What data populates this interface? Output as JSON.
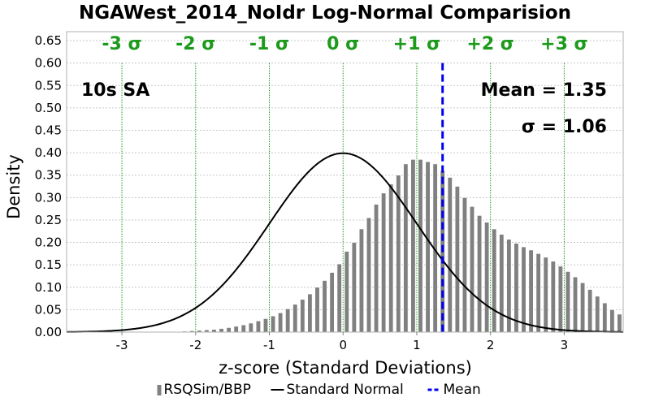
{
  "chart_data": {
    "type": "bar",
    "title": "NGAWest_2014_NoIdr Log-Normal Comparision",
    "xlabel": "z-score (Standard Deviations)",
    "ylabel": "Density",
    "xlim": [
      -3.75,
      3.8
    ],
    "ylim": [
      0,
      0.67
    ],
    "xticks": [
      -3,
      -2,
      -1,
      0,
      1,
      2,
      3
    ],
    "xtick_labels": [
      "-3",
      "-2",
      "-1",
      "0",
      "1",
      "2",
      "3"
    ],
    "yticks": [
      0,
      0.05,
      0.1,
      0.15,
      0.2,
      0.25,
      0.3,
      0.35,
      0.4,
      0.45,
      0.5,
      0.55,
      0.6,
      0.65
    ],
    "ytick_labels": [
      "0.00",
      "0.05",
      "0.10",
      "0.15",
      "0.20",
      "0.25",
      "0.30",
      "0.35",
      "0.40",
      "0.45",
      "0.50",
      "0.55",
      "0.60",
      "0.65"
    ],
    "grid": true,
    "sigma_lines": [
      {
        "x": -3,
        "label": "-3 σ"
      },
      {
        "x": -2,
        "label": "-2 σ"
      },
      {
        "x": -1,
        "label": "-1 σ"
      },
      {
        "x": 0,
        "label": "0 σ"
      },
      {
        "x": 1,
        "label": "+1 σ"
      },
      {
        "x": 2,
        "label": "+2 σ"
      },
      {
        "x": 3,
        "label": "+3 σ"
      }
    ],
    "annotations": {
      "period": "10s SA",
      "mean": "Mean = 1.35",
      "sigma": "σ = 1.06"
    },
    "mean_value": 1.35,
    "histogram": {
      "name": "RSQSim/BBP",
      "color": "#808080",
      "bin_width": 0.06,
      "points": [
        [
          -2.15,
          0.002
        ],
        [
          -2.05,
          0.003
        ],
        [
          -1.95,
          0.004
        ],
        [
          -1.85,
          0.005
        ],
        [
          -1.75,
          0.006
        ],
        [
          -1.65,
          0.008
        ],
        [
          -1.55,
          0.01
        ],
        [
          -1.45,
          0.013
        ],
        [
          -1.35,
          0.016
        ],
        [
          -1.25,
          0.02
        ],
        [
          -1.15,
          0.025
        ],
        [
          -1.05,
          0.03
        ],
        [
          -0.95,
          0.036
        ],
        [
          -0.85,
          0.043
        ],
        [
          -0.75,
          0.052
        ],
        [
          -0.65,
          0.062
        ],
        [
          -0.55,
          0.073
        ],
        [
          -0.45,
          0.085
        ],
        [
          -0.35,
          0.1
        ],
        [
          -0.25,
          0.115
        ],
        [
          -0.15,
          0.133
        ],
        [
          -0.05,
          0.152
        ],
        [
          0.05,
          0.18
        ],
        [
          0.15,
          0.2
        ],
        [
          0.25,
          0.23
        ],
        [
          0.35,
          0.255
        ],
        [
          0.45,
          0.285
        ],
        [
          0.55,
          0.31
        ],
        [
          0.65,
          0.33
        ],
        [
          0.75,
          0.35
        ],
        [
          0.85,
          0.375
        ],
        [
          0.95,
          0.385
        ],
        [
          1.05,
          0.385
        ],
        [
          1.15,
          0.38
        ],
        [
          1.25,
          0.375
        ],
        [
          1.35,
          0.36
        ],
        [
          1.45,
          0.345
        ],
        [
          1.55,
          0.325
        ],
        [
          1.65,
          0.3
        ],
        [
          1.75,
          0.28
        ],
        [
          1.85,
          0.26
        ],
        [
          1.95,
          0.245
        ],
        [
          2.05,
          0.23
        ],
        [
          2.15,
          0.218
        ],
        [
          2.25,
          0.207
        ],
        [
          2.35,
          0.198
        ],
        [
          2.45,
          0.19
        ],
        [
          2.55,
          0.183
        ],
        [
          2.65,
          0.175
        ],
        [
          2.75,
          0.167
        ],
        [
          2.85,
          0.158
        ],
        [
          2.95,
          0.147
        ],
        [
          3.05,
          0.135
        ],
        [
          3.15,
          0.123
        ],
        [
          3.25,
          0.11
        ],
        [
          3.35,
          0.095
        ],
        [
          3.45,
          0.08
        ],
        [
          3.55,
          0.065
        ],
        [
          3.65,
          0.05
        ],
        [
          3.75,
          0.04
        ]
      ]
    },
    "normal_curve": {
      "name": "Standard Normal",
      "color": "#000000",
      "mean": 0,
      "std": 1
    },
    "legend": {
      "position": "bottom",
      "items": [
        {
          "label": "RSQSim/BBP",
          "style": "bar",
          "color": "#808080"
        },
        {
          "label": "Standard Normal",
          "style": "line",
          "color": "#000000"
        },
        {
          "label": "Mean",
          "style": "dashed",
          "color": "#0000ee"
        }
      ]
    },
    "colors": {
      "sigma_line": "#1c9a1c",
      "mean_line": "#0000ee",
      "grid": "#c8c8c8"
    }
  }
}
